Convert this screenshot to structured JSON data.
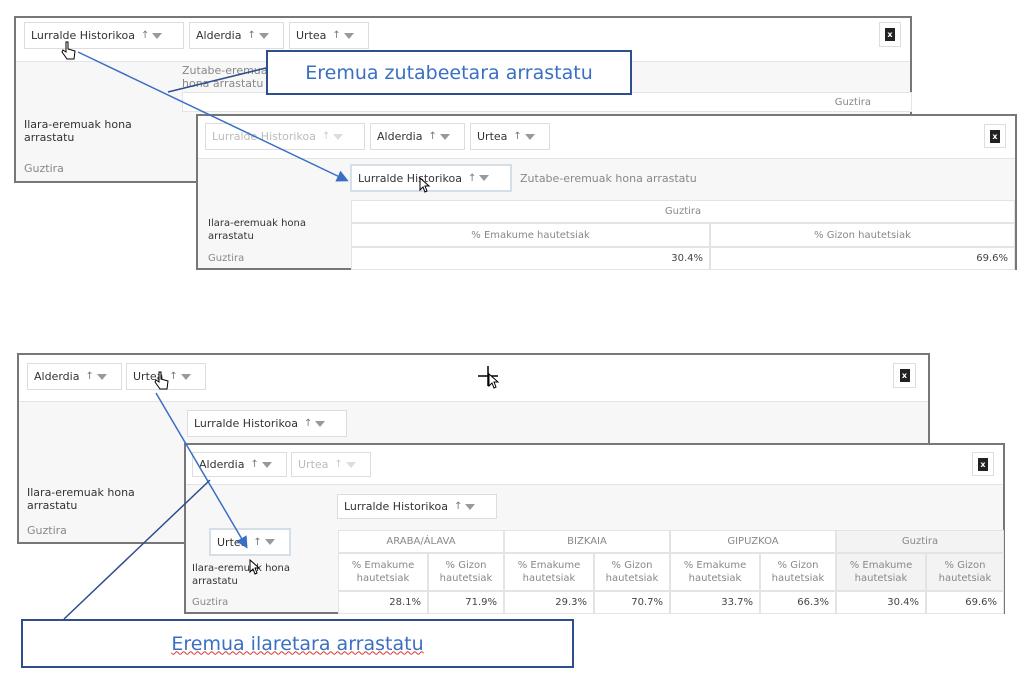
{
  "fields": {
    "region": "Lurralde Historikoa",
    "party": "Alderdia",
    "year": "Urtea"
  },
  "drop_zones": {
    "columns": "Zutabe-eremuak hona arrastatu",
    "rows": "Ilara-eremuak hona arrastatu"
  },
  "total_label": "Guztira",
  "export_icon": "excel-icon",
  "callouts": {
    "columns": "Eremua zutabeetara arrastatu",
    "rows": "Eremua ilaretara arrastatu"
  },
  "measures": {
    "women": "% Emakume hautetsiak",
    "men": "% Gizon hautetsiak",
    "women_wrapped": "% Emakume hautetsiak",
    "men_wrapped": "% Gizon hautetsiak"
  },
  "table_before": {
    "columns": [
      "Guztira"
    ],
    "values": [
      "30.4%",
      "69.6%"
    ]
  },
  "table_after": {
    "columns": [
      {
        "name": "ARABA/ÁLAVA",
        "women": "28.1%",
        "men": "71.9%"
      },
      {
        "name": "BIZKAIA",
        "women": "29.3%",
        "men": "70.7%"
      },
      {
        "name": "GIPUZKOA",
        "women": "33.7%",
        "men": "66.3%"
      },
      {
        "name": "Guztira",
        "women": "30.4%",
        "men": "69.6%"
      }
    ]
  },
  "colors": {
    "accent": "#3a6fc4",
    "callout_border": "#2e4e8f"
  }
}
